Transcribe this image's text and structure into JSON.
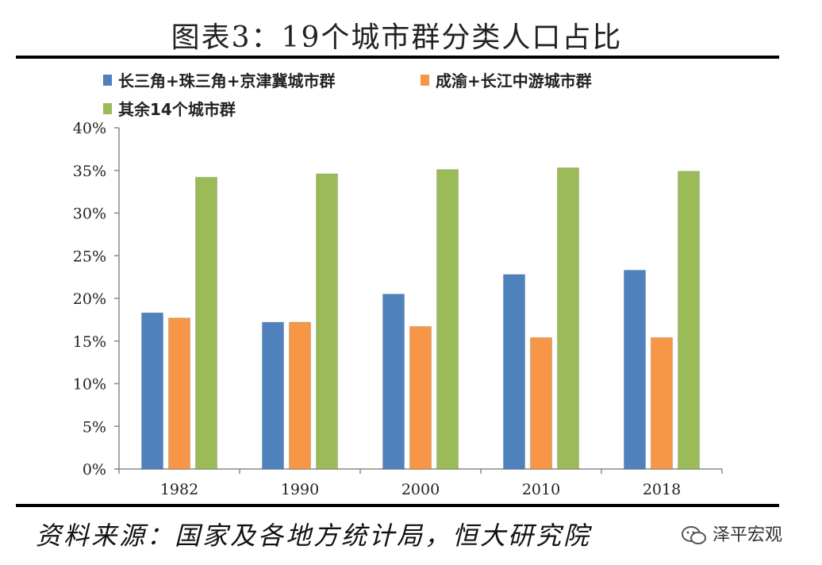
{
  "title": "图表3：19个城市群分类人口占比",
  "source": "资料来源：国家及各地方统计局，恒大研究院",
  "watermark": {
    "text": "泽平宏观",
    "icon": "wechat-icon"
  },
  "chart_data": {
    "type": "bar",
    "title": "图表3：19个城市群分类人口占比",
    "categories": [
      "1982",
      "1990",
      "2000",
      "2010",
      "2018"
    ],
    "series": [
      {
        "name": "长三角+珠三角+京津冀城市群",
        "color": "#4f81bd",
        "values": [
          18.3,
          17.2,
          20.5,
          22.8,
          23.3
        ]
      },
      {
        "name": "成渝+长江中游城市群",
        "color": "#f79646",
        "values": [
          17.7,
          17.2,
          16.7,
          15.4,
          15.4
        ]
      },
      {
        "name": "其余14个城市群",
        "color": "#9bbb59",
        "values": [
          34.2,
          34.6,
          35.1,
          35.3,
          34.9
        ]
      }
    ],
    "yticks": [
      "0%",
      "5%",
      "10%",
      "15%",
      "20%",
      "25%",
      "30%",
      "35%",
      "40%"
    ],
    "ylim": [
      0,
      40
    ],
    "xlabel": "",
    "ylabel": "",
    "grid": false,
    "legend": "top-left"
  }
}
